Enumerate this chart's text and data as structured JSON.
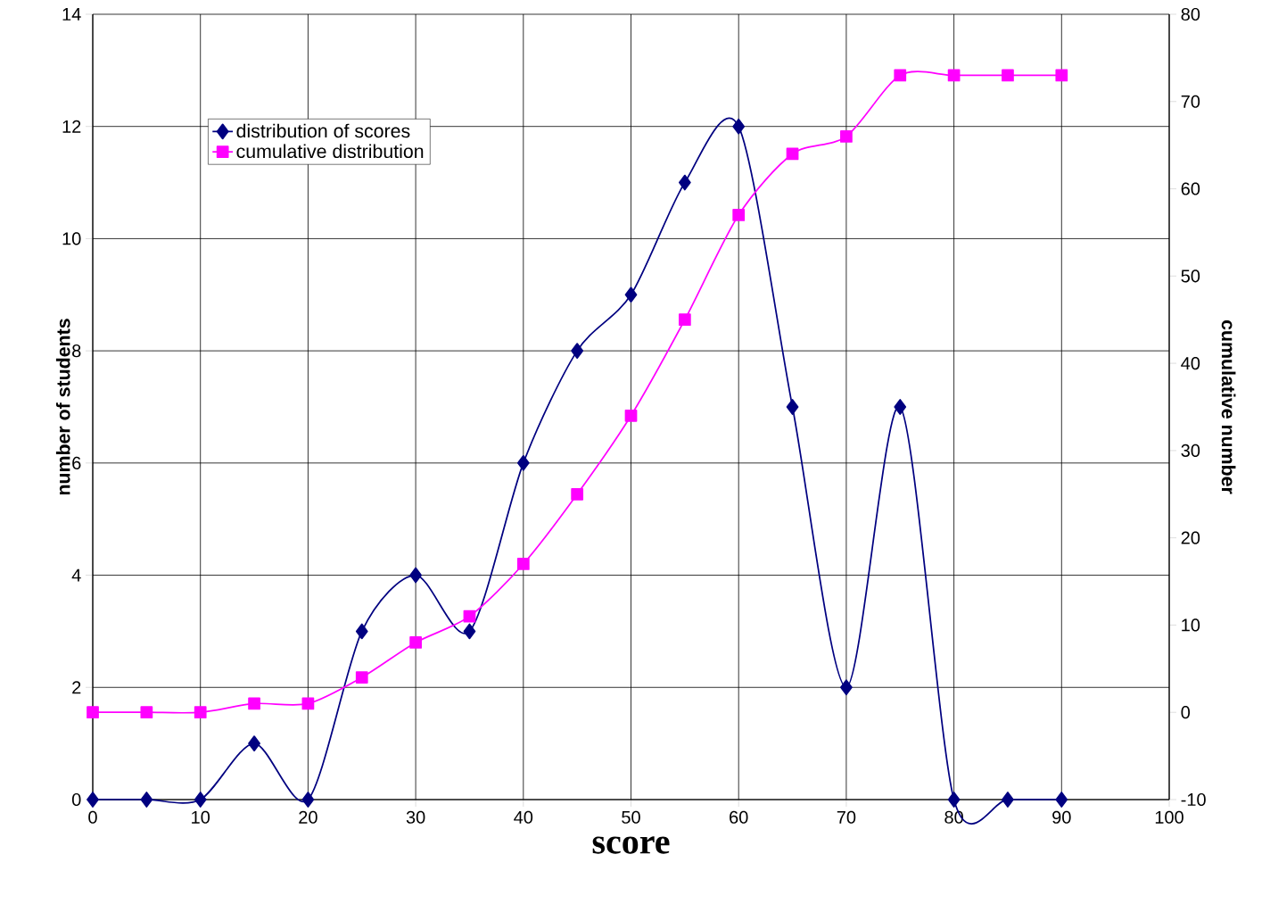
{
  "chart_data": {
    "type": "line",
    "xlabel": "score",
    "ylabel": "number of students",
    "y2label": "cumulative number",
    "x": [
      0,
      5,
      10,
      15,
      20,
      25,
      30,
      35,
      40,
      45,
      50,
      55,
      60,
      65,
      70,
      75,
      80,
      85,
      90
    ],
    "series": [
      {
        "name": "distribution of scores",
        "color": "#000080",
        "marker": "diamond",
        "values": [
          0,
          0,
          0,
          1,
          0,
          3,
          4,
          3,
          6,
          8,
          9,
          11,
          12,
          7,
          2,
          7,
          0,
          0,
          0
        ]
      },
      {
        "name": "cumulative distribution",
        "color": "#ff00ff",
        "marker": "square",
        "axis": "y2",
        "values": [
          0,
          0,
          0,
          1,
          1,
          4,
          8,
          11,
          17,
          25,
          34,
          45,
          57,
          64,
          66,
          73,
          73,
          73,
          73
        ]
      }
    ],
    "xlim": [
      0,
      100
    ],
    "xticks": [
      0,
      10,
      20,
      30,
      40,
      50,
      60,
      70,
      80,
      90,
      100
    ],
    "ylim": [
      0,
      14
    ],
    "yticks": [
      0,
      2,
      4,
      6,
      8,
      10,
      12,
      14
    ],
    "y2lim": [
      -10,
      80
    ],
    "y2ticks": [
      -10,
      0,
      10,
      20,
      30,
      40,
      50,
      60,
      70,
      80
    ],
    "grid": true,
    "legend": "top left",
    "line_style": "solid"
  }
}
